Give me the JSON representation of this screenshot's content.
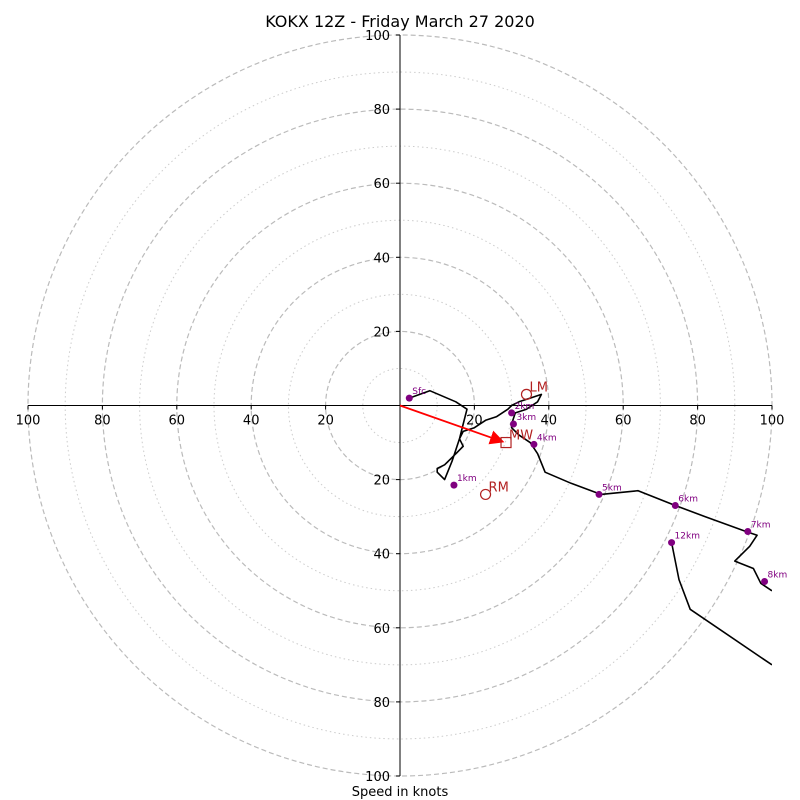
{
  "chart_data": {
    "type": "hodograph",
    "title": "KOKX 12Z - Friday March 27 2020",
    "xlabel": "Speed in knots",
    "range": [
      -100,
      100
    ],
    "ring_major": [
      20,
      40,
      60,
      80,
      100
    ],
    "ring_minor": [
      10,
      30,
      50,
      70,
      90
    ],
    "tick_values": [
      100,
      80,
      60,
      40,
      20
    ],
    "x_tick_labels": [
      "100",
      "80",
      "60",
      "40",
      "20",
      "20",
      "40",
      "60",
      "80",
      "100"
    ],
    "y_tick_labels": [
      "100",
      "80",
      "60",
      "40",
      "20",
      "20",
      "40",
      "60",
      "80",
      "100"
    ],
    "grid": true,
    "colors": {
      "trace": "#000000",
      "height_markers": "#800080",
      "motion": "#b22222",
      "mean_wind_vector": "#ff0000",
      "major_grid": "#bbbbbb",
      "minor_grid": "#cccccc"
    },
    "trace": [
      [
        2.5,
        2
      ],
      [
        8,
        4
      ],
      [
        15,
        1
      ],
      [
        18,
        -1
      ],
      [
        17,
        -5
      ],
      [
        16,
        -9
      ],
      [
        14,
        -15
      ],
      [
        12,
        -20
      ],
      [
        10,
        -18
      ],
      [
        10,
        -17
      ],
      [
        12,
        -16
      ],
      [
        14,
        -14
      ],
      [
        17,
        -11
      ],
      [
        16,
        -9
      ],
      [
        17,
        -7
      ],
      [
        20,
        -6
      ],
      [
        23,
        -4
      ],
      [
        26,
        -3
      ],
      [
        29,
        -1
      ],
      [
        30,
        0
      ],
      [
        32,
        1
      ],
      [
        35,
        2
      ],
      [
        38,
        3
      ],
      [
        37,
        1
      ],
      [
        34,
        -1
      ],
      [
        31,
        -2
      ],
      [
        30,
        -5
      ],
      [
        30,
        -6
      ],
      [
        32,
        -8
      ],
      [
        35,
        -10
      ],
      [
        37,
        -13
      ],
      [
        39,
        -18
      ],
      [
        46,
        -21
      ],
      [
        54,
        -24
      ],
      [
        64,
        -23
      ],
      [
        74,
        -27
      ],
      [
        82,
        -30
      ],
      [
        93,
        -34
      ],
      [
        96,
        -35
      ],
      [
        94,
        -38
      ],
      [
        90,
        -42
      ],
      [
        95,
        -44
      ],
      [
        97,
        -48
      ],
      [
        100,
        -50
      ]
    ],
    "trace_upper": [
      [
        100,
        -70
      ],
      [
        78,
        -55
      ],
      [
        75,
        -47
      ],
      [
        73,
        -37
      ]
    ],
    "height_points": [
      {
        "label": "Sfc",
        "u": 2.5,
        "v": 2
      },
      {
        "label": "1km",
        "u": 14.5,
        "v": -21.5
      },
      {
        "label": "2km",
        "u": 30,
        "v": -2
      },
      {
        "label": "3km",
        "u": 30.5,
        "v": -5
      },
      {
        "label": "4km",
        "u": 36,
        "v": -10.5
      },
      {
        "label": "5km",
        "u": 53.5,
        "v": -24
      },
      {
        "label": "6km",
        "u": 74,
        "v": -27
      },
      {
        "label": "7km",
        "u": 93.5,
        "v": -34
      },
      {
        "label": "8km",
        "u": 98,
        "v": -47.5
      },
      {
        "label": "12km",
        "u": 73,
        "v": -37
      }
    ],
    "storm_motion": [
      {
        "label": "LM",
        "u": 34,
        "v": 3,
        "marker": "circle"
      },
      {
        "label": "RM",
        "u": 23,
        "v": -24,
        "marker": "circle"
      },
      {
        "label": "MW",
        "u": 28.5,
        "v": -10,
        "marker": "square"
      }
    ],
    "mean_wind_vector": {
      "u": 28.5,
      "v": -10
    }
  }
}
